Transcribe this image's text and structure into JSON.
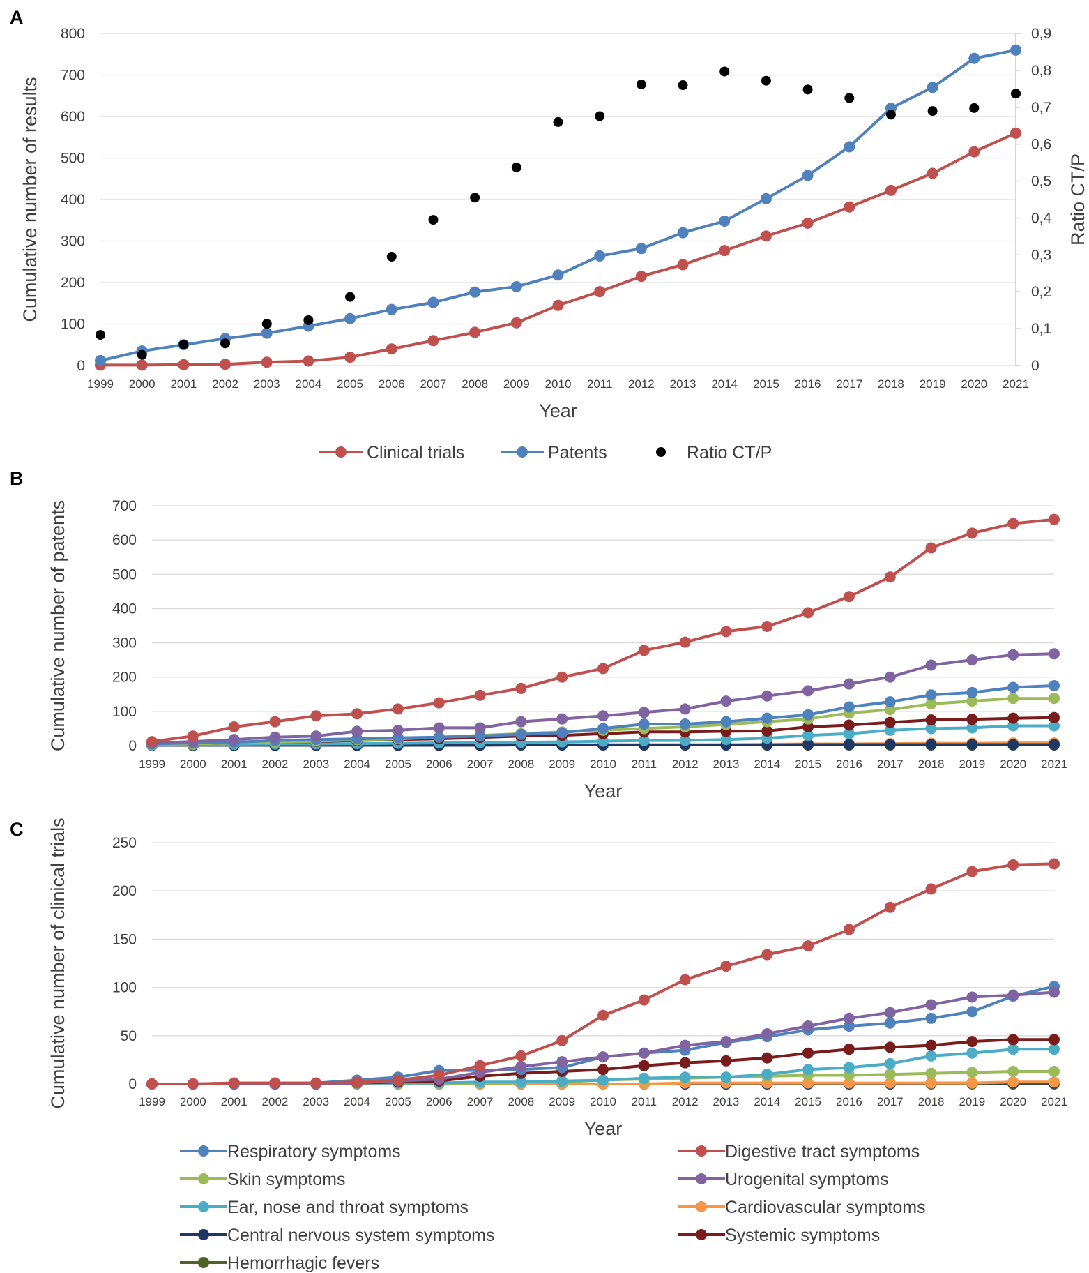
{
  "chart_data": [
    {
      "type": "line",
      "panel": "A",
      "xlabel": "Year",
      "ylabel": "Cumulative number of results",
      "y2label": "Ratio CT/P",
      "ylim": [
        0,
        800
      ],
      "y2lim": [
        0,
        0.9
      ],
      "yticks": [
        "0",
        "100",
        "200",
        "300",
        "400",
        "500",
        "600",
        "700",
        "800"
      ],
      "y2ticks": [
        "0",
        "0,1",
        "0,2",
        "0,3",
        "0,4",
        "0,5",
        "0,6",
        "0,7",
        "0,8",
        "0,9"
      ],
      "categories": [
        "1999",
        "2000",
        "2001",
        "2002",
        "2003",
        "2004",
        "2005",
        "2006",
        "2007",
        "2008",
        "2009",
        "2010",
        "2011",
        "2012",
        "2013",
        "2014",
        "2015",
        "2016",
        "2017",
        "2018",
        "2019",
        "2020",
        "2021"
      ],
      "series": [
        {
          "name": "Clinical trials",
          "color": "#c0504d",
          "axis": "left",
          "style": "line",
          "values": [
            1,
            1,
            2,
            3,
            8,
            11,
            20,
            40,
            60,
            80,
            103,
            145,
            178,
            215,
            243,
            277,
            312,
            343,
            382,
            422,
            463,
            515,
            560
          ]
        },
        {
          "name": "Patents",
          "color": "#4f81bd",
          "axis": "left",
          "style": "line",
          "values": [
            12,
            35,
            50,
            65,
            78,
            95,
            113,
            135,
            152,
            177,
            190,
            218,
            264,
            282,
            320,
            348,
            402,
            458,
            527,
            620,
            670,
            740,
            760
          ]
        },
        {
          "name": "Ratio CT/P",
          "color": "#000000",
          "axis": "right",
          "style": "marker",
          "values": [
            0.083,
            0.029,
            0.057,
            0.06,
            0.113,
            0.123,
            0.186,
            0.295,
            0.395,
            0.455,
            0.537,
            0.66,
            0.676,
            0.762,
            0.76,
            0.797,
            0.772,
            0.748,
            0.725,
            0.68,
            0.69,
            0.698,
            0.737
          ]
        }
      ]
    },
    {
      "type": "line",
      "panel": "B",
      "xlabel": "Year",
      "ylabel": "Cumulative number of patents",
      "ylim": [
        0,
        700
      ],
      "yticks": [
        "0",
        "100",
        "200",
        "300",
        "400",
        "500",
        "600",
        "700"
      ],
      "categories": [
        "1999",
        "2000",
        "2001",
        "2002",
        "2003",
        "2004",
        "2005",
        "2006",
        "2007",
        "2008",
        "2009",
        "2010",
        "2011",
        "2012",
        "2013",
        "2014",
        "2015",
        "2016",
        "2017",
        "2018",
        "2019",
        "2020",
        "2021"
      ],
      "series": [
        {
          "name": "Hemorrhagic fevers",
          "color": "#4f6228",
          "values": [
            1,
            1,
            1,
            1,
            1,
            1,
            2,
            2,
            2,
            2,
            2,
            2,
            2,
            2,
            2,
            2,
            2,
            2,
            2,
            2,
            2,
            2,
            2
          ]
        },
        {
          "name": "Cardiovascular symptoms",
          "color": "#f79646",
          "values": [
            1,
            1,
            1,
            1,
            1,
            2,
            2,
            2,
            2,
            2,
            3,
            3,
            3,
            3,
            3,
            4,
            5,
            5,
            6,
            7,
            7,
            8,
            8
          ]
        },
        {
          "name": "Central nervous system symptoms",
          "color": "#1f3864",
          "values": [
            1,
            1,
            1,
            1,
            1,
            1,
            1,
            1,
            1,
            2,
            2,
            2,
            2,
            2,
            2,
            2,
            3,
            3,
            3,
            3,
            3,
            3,
            3
          ]
        },
        {
          "name": "Ear, nose and throat symptoms",
          "color": "#4bacc6",
          "values": [
            2,
            3,
            4,
            5,
            5,
            6,
            7,
            8,
            9,
            10,
            11,
            13,
            15,
            15,
            18,
            22,
            30,
            35,
            45,
            50,
            52,
            58,
            58
          ]
        },
        {
          "name": "Systemic symptoms",
          "color": "#7b1c1c",
          "values": [
            3,
            5,
            8,
            10,
            12,
            15,
            18,
            20,
            24,
            28,
            30,
            35,
            40,
            40,
            42,
            43,
            55,
            60,
            68,
            75,
            77,
            80,
            82
          ]
        },
        {
          "name": "Skin symptoms",
          "color": "#9bbb59",
          "values": [
            3,
            5,
            8,
            10,
            13,
            17,
            20,
            25,
            30,
            35,
            40,
            45,
            50,
            55,
            62,
            70,
            78,
            95,
            105,
            122,
            130,
            138,
            138
          ]
        },
        {
          "name": "Respiratory symptoms",
          "color": "#4f81bd",
          "values": [
            5,
            8,
            10,
            15,
            18,
            20,
            23,
            25,
            28,
            33,
            38,
            50,
            63,
            63,
            70,
            80,
            90,
            113,
            128,
            148,
            155,
            170,
            175
          ]
        },
        {
          "name": "Urogenital symptoms",
          "color": "#8064a2",
          "values": [
            8,
            12,
            18,
            25,
            28,
            42,
            45,
            52,
            52,
            70,
            78,
            87,
            97,
            107,
            130,
            145,
            160,
            180,
            200,
            235,
            250,
            265,
            268
          ]
        },
        {
          "name": "Digestive tract symptoms",
          "color": "#c0504d",
          "values": [
            12,
            28,
            55,
            70,
            87,
            93,
            107,
            125,
            147,
            167,
            200,
            225,
            278,
            302,
            333,
            348,
            388,
            435,
            492,
            577,
            620,
            648,
            660
          ]
        }
      ]
    },
    {
      "type": "line",
      "panel": "C",
      "xlabel": "Year",
      "ylabel": "Cumulative number of clinical trials",
      "ylim": [
        0,
        250
      ],
      "yticks": [
        "0",
        "50",
        "100",
        "150",
        "200",
        "250"
      ],
      "categories": [
        "1999",
        "2000",
        "2001",
        "2002",
        "2003",
        "2004",
        "2005",
        "2006",
        "2007",
        "2008",
        "2009",
        "2010",
        "2011",
        "2012",
        "2013",
        "2014",
        "2015",
        "2016",
        "2017",
        "2018",
        "2019",
        "2020",
        "2021"
      ],
      "series": [
        {
          "name": "Hemorrhagic fevers",
          "color": "#4f6228",
          "values": [
            0,
            0,
            0,
            0,
            0,
            0,
            0,
            0,
            0,
            0,
            0,
            0,
            0,
            0,
            0,
            0,
            0,
            0,
            0,
            0,
            0,
            0,
            0
          ]
        },
        {
          "name": "Central nervous system symptoms",
          "color": "#1f3864",
          "values": [
            0,
            0,
            0,
            0,
            0,
            0,
            0,
            0,
            0,
            0,
            0,
            0,
            0,
            0,
            0,
            0,
            0,
            0,
            0,
            1,
            1,
            1,
            1
          ]
        },
        {
          "name": "Cardiovascular symptoms",
          "color": "#f79646",
          "values": [
            0,
            0,
            0,
            0,
            0,
            0,
            0,
            0,
            0,
            0,
            0,
            0,
            0,
            1,
            1,
            1,
            1,
            1,
            1,
            1,
            1,
            2,
            2
          ]
        },
        {
          "name": "Skin symptoms",
          "color": "#9bbb59",
          "values": [
            0,
            0,
            0,
            0,
            0,
            0,
            0,
            0,
            1,
            1,
            2,
            4,
            5,
            6,
            7,
            8,
            9,
            9,
            10,
            11,
            12,
            13,
            13
          ]
        },
        {
          "name": "Ear, nose and throat symptoms",
          "color": "#4bacc6",
          "values": [
            0,
            0,
            0,
            0,
            0,
            1,
            1,
            1,
            2,
            2,
            3,
            4,
            6,
            7,
            7,
            10,
            15,
            17,
            21,
            29,
            32,
            36,
            36
          ]
        },
        {
          "name": "Systemic symptoms",
          "color": "#7b1c1c",
          "values": [
            0,
            0,
            0,
            0,
            0,
            1,
            2,
            3,
            8,
            11,
            13,
            15,
            19,
            22,
            24,
            27,
            32,
            36,
            38,
            40,
            44,
            46,
            46
          ]
        },
        {
          "name": "Respiratory symptoms",
          "color": "#4f81bd",
          "values": [
            0,
            0,
            1,
            1,
            1,
            4,
            7,
            14,
            14,
            15,
            17,
            28,
            32,
            35,
            43,
            49,
            56,
            60,
            63,
            68,
            75,
            91,
            101
          ]
        },
        {
          "name": "Urogenital symptoms",
          "color": "#8064a2",
          "values": [
            0,
            0,
            0,
            0,
            0,
            1,
            3,
            5,
            12,
            18,
            23,
            28,
            32,
            40,
            44,
            52,
            60,
            68,
            74,
            82,
            90,
            92,
            95
          ]
        },
        {
          "name": "Digestive tract symptoms",
          "color": "#c0504d",
          "values": [
            0,
            0,
            1,
            1,
            1,
            2,
            4,
            9,
            19,
            29,
            45,
            71,
            87,
            108,
            122,
            134,
            143,
            160,
            183,
            202,
            220,
            227,
            228
          ]
        }
      ]
    }
  ],
  "legend_a": [
    {
      "label": "Clinical trials",
      "color": "#c0504d",
      "style": "line"
    },
    {
      "label": "Patents",
      "color": "#4f81bd",
      "style": "line"
    },
    {
      "label": "Ratio CT/P",
      "color": "#000000",
      "style": "marker"
    }
  ],
  "legend_bc": [
    {
      "label": "Respiratory symptoms",
      "color": "#4f81bd"
    },
    {
      "label": "Digestive tract symptoms",
      "color": "#c0504d"
    },
    {
      "label": "Skin symptoms",
      "color": "#9bbb59"
    },
    {
      "label": "Urogenital symptoms",
      "color": "#8064a2"
    },
    {
      "label": "Ear, nose and throat symptoms",
      "color": "#4bacc6"
    },
    {
      "label": "Cardiovascular symptoms",
      "color": "#f79646"
    },
    {
      "label": "Central nervous system symptoms",
      "color": "#1f3864"
    },
    {
      "label": "Systemic symptoms",
      "color": "#7b1c1c"
    },
    {
      "label": "Hemorrhagic fevers",
      "color": "#4f6228"
    }
  ]
}
